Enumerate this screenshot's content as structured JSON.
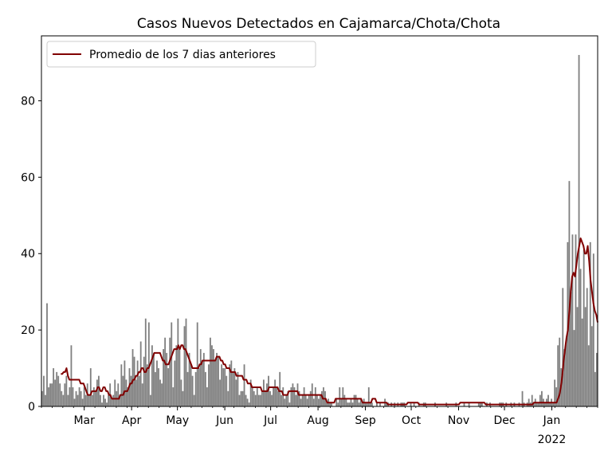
{
  "chart_data": {
    "type": "bar",
    "title": "Casos Nuevos Detectados en Cajamarca/Chota/Chota",
    "xlabel": "",
    "ylabel": "",
    "ylim": [
      0,
      97
    ],
    "yticks": [
      0,
      20,
      40,
      60,
      80
    ],
    "x_start": "2021-02-01",
    "x_end": "2022-01-31",
    "month_ticks": [
      {
        "date": "2021-03-01",
        "label": "Mar"
      },
      {
        "date": "2021-04-01",
        "label": "Apr"
      },
      {
        "date": "2021-05-01",
        "label": "May"
      },
      {
        "date": "2021-06-01",
        "label": "Jun"
      },
      {
        "date": "2021-07-01",
        "label": "Jul"
      },
      {
        "date": "2021-08-01",
        "label": "Aug"
      },
      {
        "date": "2021-09-01",
        "label": "Sep"
      },
      {
        "date": "2021-10-01",
        "label": "Oct"
      },
      {
        "date": "2021-11-01",
        "label": "Nov"
      },
      {
        "date": "2021-12-01",
        "label": "Dec"
      },
      {
        "date": "2022-01-01",
        "label": "Jan"
      }
    ],
    "year_label": "2022",
    "legend": {
      "placement": "upper-left",
      "entries": [
        "Promedio de los 7 dias anteriores"
      ]
    },
    "colors": {
      "bars": "#808080",
      "line": "#800000"
    },
    "series": [
      {
        "kind": "bar",
        "values": [
          4,
          8,
          3,
          27,
          5,
          6,
          6,
          10,
          7,
          9,
          8,
          6,
          4,
          3,
          6,
          8,
          3,
          5,
          16,
          5,
          2,
          4,
          3,
          5,
          4,
          2,
          5,
          3,
          6,
          3,
          10,
          3,
          5,
          4,
          7,
          8,
          3,
          1,
          3,
          2,
          1,
          3,
          6,
          2,
          3,
          7,
          4,
          6,
          3,
          11,
          8,
          12,
          7,
          5,
          10,
          8,
          15,
          13,
          7,
          12,
          8,
          17,
          6,
          13,
          23,
          11,
          22,
          3,
          16,
          14,
          9,
          12,
          10,
          7,
          6,
          15,
          18,
          14,
          10,
          18,
          22,
          5,
          12,
          16,
          23,
          15,
          7,
          4,
          21,
          23,
          9,
          14,
          11,
          8,
          3,
          9,
          22,
          10,
          15,
          12,
          14,
          9,
          5,
          11,
          18,
          16,
          15,
          12,
          14,
          13,
          7,
          11,
          10,
          10,
          8,
          4,
          11,
          12,
          9,
          10,
          7,
          9,
          3,
          4,
          4,
          11,
          3,
          2,
          1,
          7,
          5,
          4,
          3,
          5,
          3,
          3,
          4,
          7,
          4,
          6,
          8,
          4,
          3,
          5,
          7,
          5,
          4,
          9,
          3,
          5,
          2,
          3,
          4,
          1,
          5,
          6,
          5,
          3,
          6,
          4,
          2,
          3,
          5,
          3,
          2,
          3,
          4,
          6,
          2,
          5,
          3,
          2,
          3,
          4,
          5,
          4,
          1,
          2,
          1,
          1,
          0,
          0,
          2,
          1,
          5,
          2,
          5,
          3,
          2,
          1,
          1,
          2,
          1,
          3,
          3,
          2,
          1,
          2,
          1,
          2,
          1,
          1,
          5,
          1,
          1,
          0,
          0,
          1,
          0,
          1,
          0,
          0,
          2,
          1,
          1,
          0,
          1,
          0,
          1,
          0,
          1,
          0,
          1,
          1,
          1,
          0,
          0,
          0,
          1,
          0,
          1,
          0,
          0,
          1,
          0,
          0,
          1,
          1,
          0,
          0,
          0,
          0,
          0,
          1,
          0,
          0,
          0,
          0,
          0,
          0,
          1,
          0,
          0,
          0,
          0,
          0,
          1,
          0,
          0,
          0,
          0,
          1,
          0,
          0,
          1,
          0,
          0,
          0,
          0,
          0,
          1,
          1,
          1,
          0,
          0,
          1,
          0,
          1,
          0,
          0,
          0,
          0,
          0,
          1,
          1,
          1,
          0,
          1,
          0,
          0,
          1,
          0,
          1,
          0,
          0,
          1,
          0,
          4,
          1,
          0,
          1,
          2,
          1,
          3,
          1,
          2,
          1,
          1,
          3,
          4,
          2,
          1,
          2,
          3,
          1,
          2,
          1,
          7,
          5,
          16,
          18,
          10,
          31,
          15,
          17,
          43,
          59,
          30,
          45,
          20,
          45,
          26,
          92,
          36,
          23,
          41,
          26,
          31,
          16,
          43,
          21,
          40,
          9,
          14
        ]
      },
      {
        "kind": "line",
        "name": "Promedio de los 7 dias anteriores",
        "values": [
          8.5,
          8.5,
          9,
          9,
          10,
          8,
          7,
          7,
          7,
          7,
          7,
          7,
          7,
          7,
          6,
          6,
          6,
          5,
          4,
          3,
          3,
          3,
          4,
          4,
          4,
          4,
          5,
          5,
          4,
          4,
          5,
          5,
          4,
          4,
          3,
          3,
          2,
          2,
          2,
          2,
          2,
          2,
          3,
          3,
          3,
          4,
          4,
          4,
          5,
          6,
          6,
          7,
          7,
          8,
          8,
          9,
          9,
          10,
          10,
          9,
          9,
          10,
          10,
          11,
          12,
          13,
          14,
          14,
          14,
          14,
          14,
          13,
          12,
          12,
          11,
          11,
          11,
          12,
          13,
          14,
          15,
          15,
          15,
          16,
          15,
          16,
          16,
          15,
          15,
          14,
          13,
          12,
          11,
          10,
          10,
          10,
          10,
          10,
          11,
          11,
          12,
          12,
          12,
          12,
          12,
          12,
          12,
          12,
          12,
          12,
          13,
          13,
          13,
          12,
          12,
          11,
          11,
          10,
          10,
          10,
          9,
          9,
          9,
          9,
          8,
          8,
          8,
          8,
          8,
          7,
          7,
          7,
          6,
          6,
          6,
          5,
          5,
          5,
          5,
          5,
          5,
          5,
          4,
          4,
          4,
          4,
          4,
          5,
          5,
          5,
          5,
          5,
          5,
          5,
          4,
          4,
          4,
          3,
          3,
          3,
          3,
          4,
          4,
          4,
          4,
          4,
          4,
          4,
          3,
          3,
          3,
          3,
          3,
          3,
          3,
          3,
          3,
          3,
          3,
          3,
          3,
          3,
          3,
          3,
          3,
          2,
          2,
          2,
          1,
          1,
          1,
          1,
          1,
          1,
          2,
          2,
          2,
          2,
          2,
          2,
          2,
          2,
          2,
          2,
          2,
          2,
          2,
          2,
          2,
          2,
          2,
          2,
          2,
          1,
          1,
          1,
          1,
          1,
          1,
          1,
          2,
          2,
          2,
          1,
          1,
          1,
          1,
          1,
          1,
          1,
          1,
          0.5,
          0.5,
          0.5,
          0.5,
          0.5,
          0.5,
          0.5,
          0.5,
          0.5,
          0.5,
          0.5,
          0.5,
          0.5,
          0.5,
          1,
          1,
          1,
          1,
          1,
          1,
          1,
          1,
          0.5,
          0.5,
          0.5,
          0.5,
          0.5,
          0.5,
          0.5,
          0.5,
          0.5,
          0.5,
          0.5,
          0.5,
          0.5,
          0.5,
          0.5,
          0.5,
          0.5,
          0.5,
          0.5,
          0.5,
          0.5,
          0.5,
          0.5,
          0.5,
          0.5,
          0.5,
          0.5,
          0.5,
          0.5,
          1,
          1,
          1,
          1,
          1,
          1,
          1,
          1,
          1,
          1,
          1,
          1,
          1,
          1,
          1,
          1,
          1,
          1,
          0.5,
          0.5,
          0.5,
          0.5,
          0.5,
          0.5,
          0.5,
          0.5,
          0.5,
          0.5,
          0.5,
          0.5,
          0.5,
          0.5,
          0.5,
          0.5,
          0.5,
          0.5,
          0.5,
          0.5,
          0.5,
          0.5,
          0.5,
          0.5,
          0.5,
          0.5,
          0.5,
          0.5,
          0.5,
          0.5,
          0.5,
          0.5,
          0.5,
          0.5,
          1,
          1,
          1,
          1,
          1,
          1,
          1,
          1,
          1,
          1,
          1,
          1,
          1,
          1,
          1,
          1,
          1,
          2,
          3,
          5,
          8,
          12,
          15,
          18,
          20,
          25,
          30,
          34,
          35,
          34,
          37,
          40,
          42,
          44,
          43,
          42,
          40,
          40,
          42,
          38,
          33,
          30,
          27,
          25,
          24,
          22
        ]
      }
    ]
  }
}
